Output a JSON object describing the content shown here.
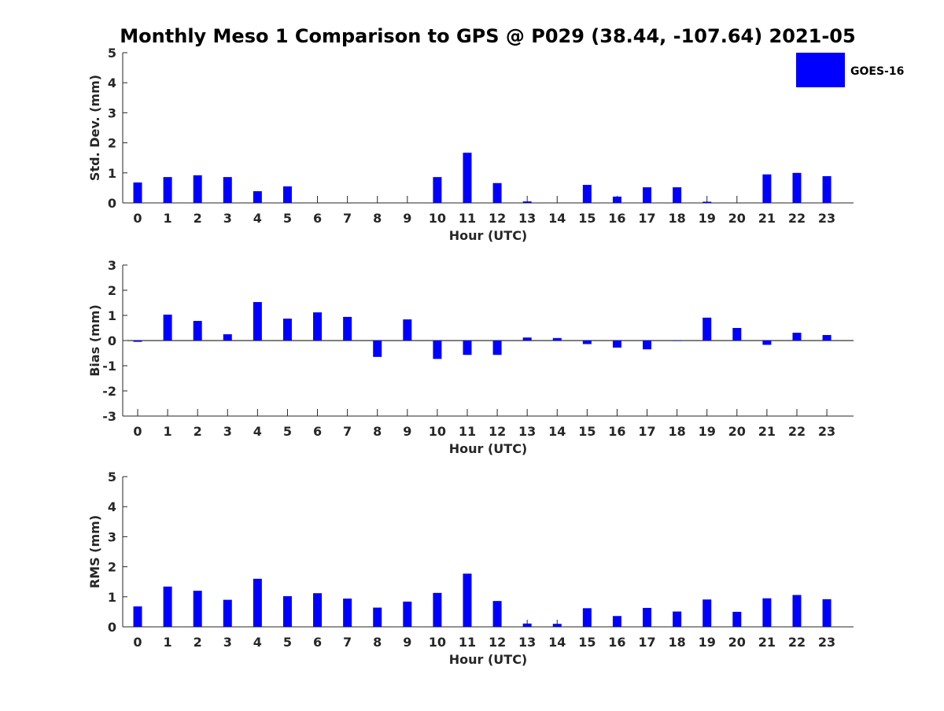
{
  "title": "Monthly Meso 1 Comparison to GPS @ P029 (38.44, -107.64) 2021-05",
  "legend": {
    "label": "GOES-16",
    "color": "#0000ff",
    "position": "top-right"
  },
  "chart_data": [
    {
      "type": "bar",
      "name": "std-dev",
      "title": "Monthly Meso 1 Comparison to GPS @ P029 (38.44, -107.64) 2021-05",
      "xlabel": "Hour (UTC)",
      "ylabel": "Std. Dev. (mm)",
      "ylim": [
        0,
        5
      ],
      "yticks": [
        "0",
        "1",
        "2",
        "3",
        "4",
        "5"
      ],
      "categories": [
        "0",
        "1",
        "2",
        "3",
        "4",
        "5",
        "6",
        "7",
        "8",
        "9",
        "10",
        "11",
        "12",
        "13",
        "14",
        "15",
        "16",
        "17",
        "18",
        "19",
        "20",
        "21",
        "22",
        "23"
      ],
      "series": [
        {
          "name": "GOES-16",
          "values": [
            0.68,
            0.86,
            0.92,
            0.86,
            0.39,
            0.55,
            0,
            0,
            0,
            0,
            0.86,
            1.67,
            0.66,
            0.05,
            0,
            0.6,
            0.21,
            0.52,
            0.52,
            0.04,
            0,
            0.95,
            1.0,
            0.89
          ]
        }
      ]
    },
    {
      "type": "bar",
      "name": "bias",
      "xlabel": "Hour (UTC)",
      "ylabel": "Bias (mm)",
      "ylim": [
        -3,
        3
      ],
      "yticks": [
        "-3",
        "-2",
        "-1",
        "0",
        "1",
        "2",
        "3"
      ],
      "categories": [
        "0",
        "1",
        "2",
        "3",
        "4",
        "5",
        "6",
        "7",
        "8",
        "9",
        "10",
        "11",
        "12",
        "13",
        "14",
        "15",
        "16",
        "17",
        "18",
        "19",
        "20",
        "21",
        "22",
        "23"
      ],
      "series": [
        {
          "name": "GOES-16",
          "values": [
            -0.05,
            1.03,
            0.78,
            0.25,
            1.53,
            0.87,
            1.12,
            0.94,
            -0.65,
            0.84,
            -0.73,
            -0.57,
            -0.57,
            0.12,
            0.1,
            -0.14,
            -0.28,
            -0.35,
            -0.02,
            0.91,
            0.5,
            -0.17,
            0.31,
            0.22
          ]
        }
      ]
    },
    {
      "type": "bar",
      "name": "rms",
      "xlabel": "Hour (UTC)",
      "ylabel": "RMS (mm)",
      "ylim": [
        0,
        5
      ],
      "yticks": [
        "0",
        "1",
        "2",
        "3",
        "4",
        "5"
      ],
      "categories": [
        "0",
        "1",
        "2",
        "3",
        "4",
        "5",
        "6",
        "7",
        "8",
        "9",
        "10",
        "11",
        "12",
        "13",
        "14",
        "15",
        "16",
        "17",
        "18",
        "19",
        "20",
        "21",
        "22",
        "23"
      ],
      "series": [
        {
          "name": "GOES-16",
          "values": [
            0.68,
            1.34,
            1.2,
            0.9,
            1.6,
            1.02,
            1.12,
            0.94,
            0.64,
            0.84,
            1.13,
            1.77,
            0.86,
            0.11,
            0.1,
            0.62,
            0.36,
            0.63,
            0.51,
            0.91,
            0.5,
            0.95,
            1.06,
            0.92
          ]
        }
      ]
    }
  ]
}
